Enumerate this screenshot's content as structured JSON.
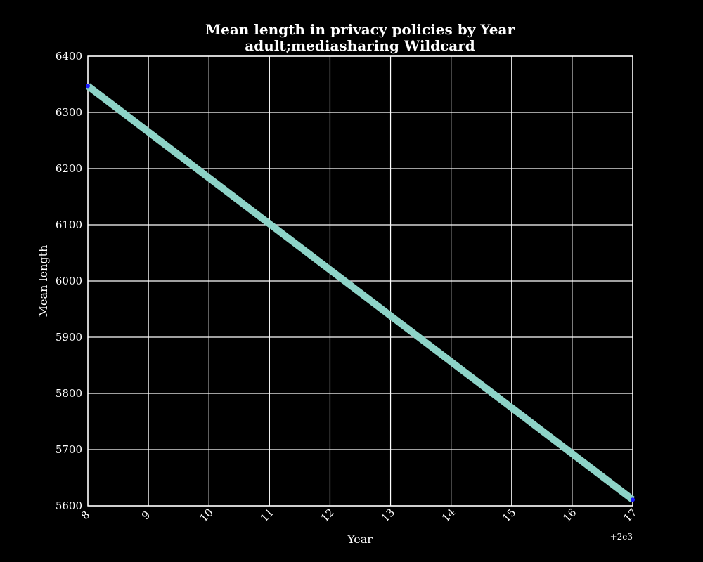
{
  "chart_data": {
    "type": "line",
    "title": "Mean length in privacy policies by Year",
    "subtitle": "adult;mediasharing Wildcard",
    "xlabel": "Year",
    "ylabel": "Mean length",
    "x_offset_label": "+2e3",
    "xlim": [
      8,
      17
    ],
    "ylim": [
      5600,
      6400
    ],
    "x_ticks": [
      8,
      9,
      10,
      11,
      12,
      13,
      14,
      15,
      16,
      17
    ],
    "y_ticks": [
      5600,
      5700,
      5800,
      5900,
      6000,
      6100,
      6200,
      6300,
      6400
    ],
    "grid": true,
    "series": [
      {
        "x": [
          8,
          17
        ],
        "y": [
          6347,
          5611
        ],
        "color": "#8dd3c7",
        "marker_color": "#1a1aff"
      }
    ],
    "colors": {
      "background": "#000000",
      "grid": "#ffffff",
      "text": "#ffffff"
    }
  }
}
